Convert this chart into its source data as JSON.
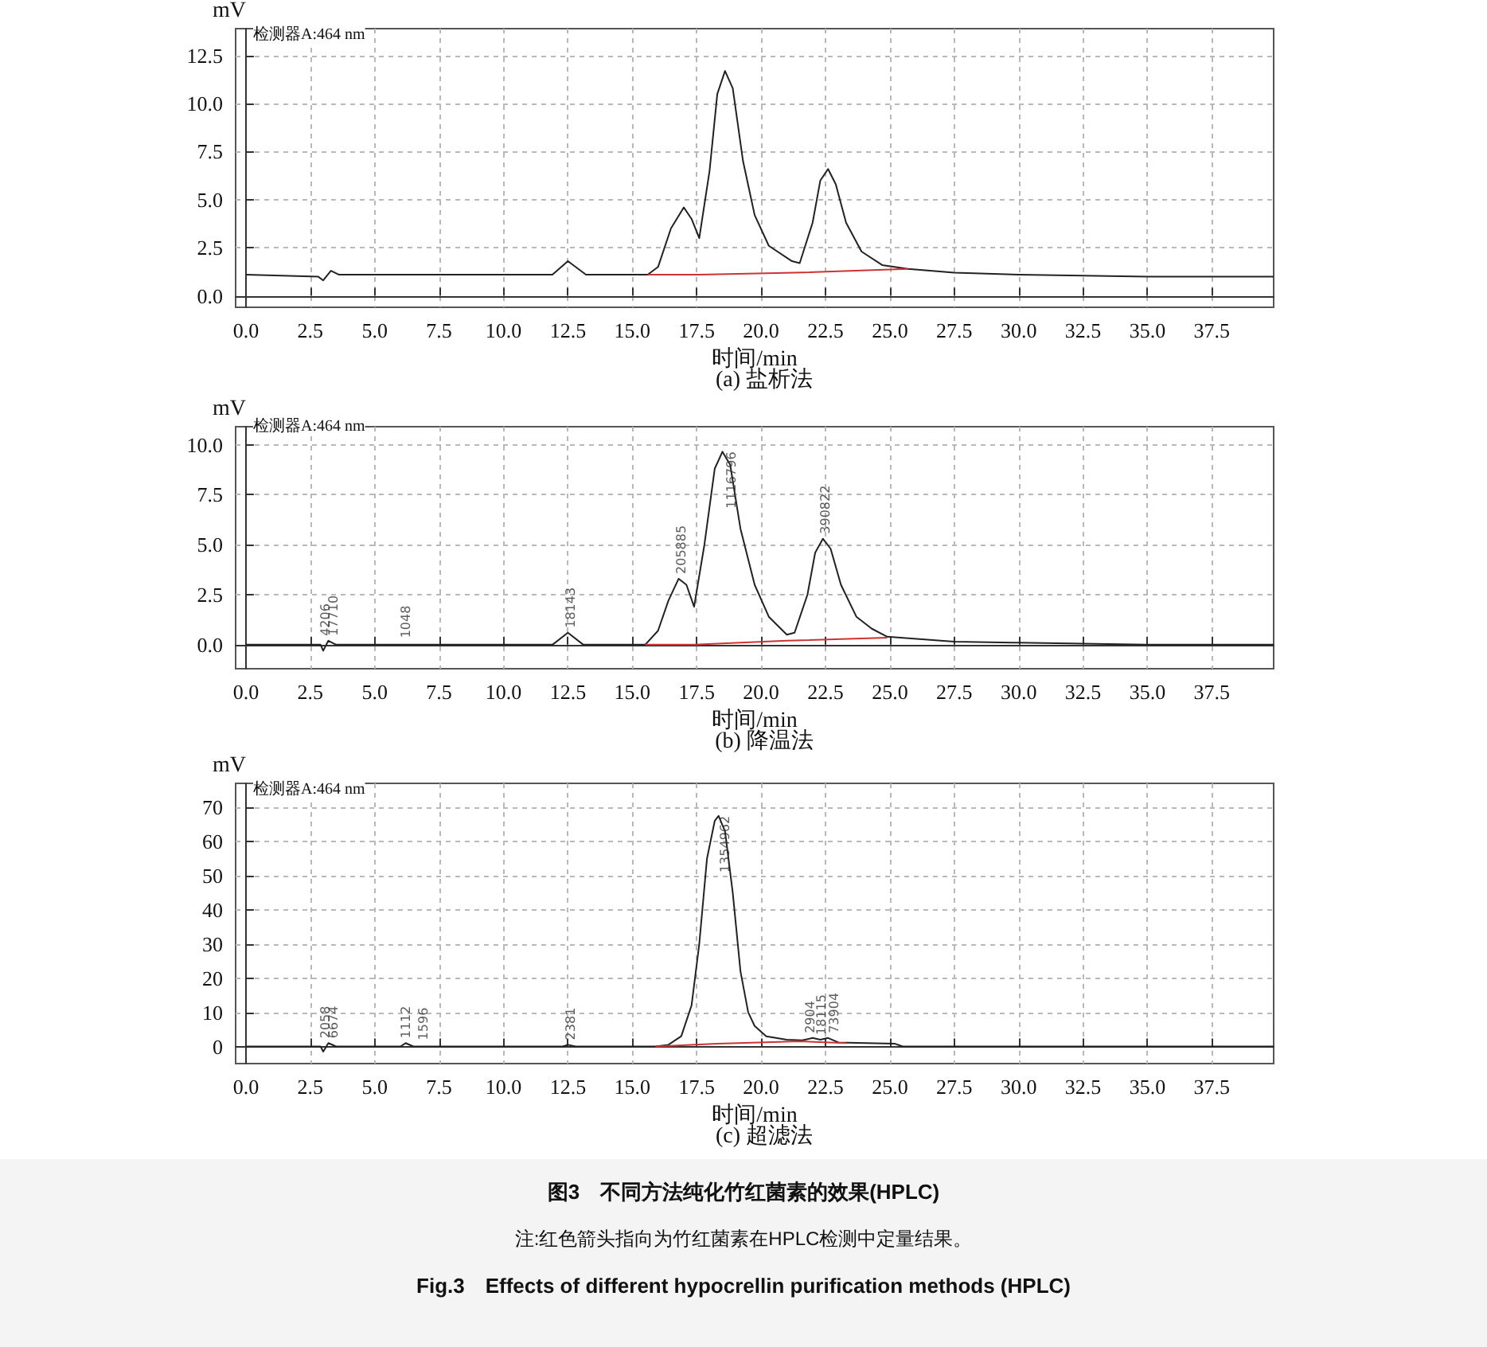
{
  "chart_data": [
    {
      "type": "line",
      "title": "(a) 盐析法",
      "xlabel": "时间/min",
      "ylabel": "mV",
      "annotations": [
        "检测器A:464 nm"
      ],
      "xlim": [
        -0.4,
        39.9
      ],
      "xticks": [
        {
          "value": 0,
          "label": "0.0"
        },
        2.5,
        {
          "value": 5,
          "label": "5.0"
        },
        7.5,
        {
          "value": 10,
          "label": "10.0"
        },
        12.5,
        {
          "value": 15,
          "label": "15.0"
        },
        17.5,
        {
          "value": 20,
          "label": "20.0"
        },
        22.5,
        {
          "value": 25,
          "label": "25.0"
        },
        27.5,
        {
          "value": 30,
          "label": "30.0"
        },
        32.5,
        {
          "value": 35,
          "label": "35.0"
        },
        37.5
      ],
      "ylim": [
        -0.6,
        13.9
      ],
      "yticks": [
        {
          "value": 0,
          "label": "0.0"
        },
        2.5,
        {
          "value": 5,
          "label": "5.0"
        },
        7.5,
        {
          "value": 10,
          "label": "10.0"
        },
        12.5
      ],
      "grid": true,
      "marker": "none",
      "line_style": "solid",
      "series": [
        {
          "color": "#222222",
          "x": [
            0,
            2.8,
            3.0,
            3.3,
            3.6,
            6,
            11.9,
            12.5,
            13.2,
            15.6,
            16.0,
            16.5,
            17.0,
            17.3,
            17.6,
            18.0,
            18.3,
            18.6,
            18.9,
            19.3,
            19.75,
            20.3,
            21.2,
            21.5,
            22.0,
            22.3,
            22.6,
            22.9,
            23.3,
            23.9,
            24.7,
            25.7,
            27.5,
            30,
            35,
            39.9
          ],
          "values": [
            1.1,
            1.0,
            0.8,
            1.3,
            1.1,
            1.1,
            1.1,
            1.8,
            1.1,
            1.1,
            1.5,
            3.5,
            4.6,
            4.0,
            3.0,
            6.5,
            10.5,
            11.7,
            10.8,
            7.0,
            4.2,
            2.6,
            1.8,
            1.7,
            3.8,
            6.0,
            6.6,
            5.8,
            3.8,
            2.3,
            1.6,
            1.4,
            1.2,
            1.1,
            1.0,
            1.0
          ]
        },
        {
          "color": "#cc3333",
          "x": [
            15.6,
            17.6,
            21.3,
            25.7
          ],
          "values": [
            1.1,
            1.1,
            1.2,
            1.4
          ]
        }
      ]
    },
    {
      "type": "line",
      "title": "(b) 降温法",
      "xlabel": "时间/min",
      "ylabel": "mV",
      "annotations": [
        "检测器A:464 nm",
        {
          "text": "4206",
          "x": 3.1,
          "y": 0.2
        },
        {
          "text": "17710",
          "x": 3.4,
          "y": 0.2
        },
        {
          "text": "1048",
          "x": 6.2,
          "y": 0.1
        },
        {
          "text": "18143",
          "x": 12.6,
          "y": 0.6
        },
        {
          "text": "205885",
          "x": 16.9,
          "y": 3.3
        },
        {
          "text": "1116796",
          "x": 18.6,
          "y": 9.65
        },
        {
          "text": "390822",
          "x": 22.5,
          "y": 5.3
        }
      ],
      "xlim": [
        -0.4,
        39.9
      ],
      "xticks": [
        {
          "value": 0,
          "label": "0.0"
        },
        2.5,
        {
          "value": 5,
          "label": "5.0"
        },
        7.5,
        {
          "value": 10,
          "label": "10.0"
        },
        12.5,
        {
          "value": 15,
          "label": "15.0"
        },
        17.5,
        {
          "value": 20,
          "label": "20.0"
        },
        22.5,
        {
          "value": 25,
          "label": "25.0"
        },
        27.5,
        {
          "value": 30,
          "label": "30.0"
        },
        32.5,
        {
          "value": 35,
          "label": "35.0"
        },
        37.5
      ],
      "ylim": [
        -1.2,
        10.9
      ],
      "yticks": [
        {
          "value": 0,
          "label": "0.0"
        },
        2.5,
        {
          "value": 5,
          "label": "5.0"
        },
        7.5,
        {
          "value": 10,
          "label": "10.0"
        }
      ],
      "grid": true,
      "marker": "none",
      "line_style": "solid",
      "series": [
        {
          "color": "#222222",
          "x": [
            0,
            2.9,
            3.0,
            3.2,
            3.5,
            11.9,
            12.5,
            13.1,
            15.5,
            16.0,
            16.4,
            16.8,
            17.1,
            17.4,
            17.8,
            18.2,
            18.5,
            18.8,
            19.2,
            19.75,
            20.3,
            21.0,
            21.3,
            21.8,
            22.1,
            22.4,
            22.7,
            23.1,
            23.7,
            24.3,
            24.9,
            27.5,
            30,
            35,
            39.9
          ],
          "values": [
            0,
            0,
            -0.3,
            0.2,
            0,
            0,
            0.6,
            0,
            0,
            0.7,
            2.2,
            3.3,
            3.0,
            1.9,
            5.0,
            8.8,
            9.65,
            9.0,
            5.8,
            3.0,
            1.4,
            0.5,
            0.6,
            2.5,
            4.6,
            5.3,
            4.8,
            3.0,
            1.4,
            0.8,
            0.4,
            0.15,
            0.1,
            0,
            0
          ]
        },
        {
          "color": "#cc3333",
          "x": [
            15.5,
            17.4,
            21.0,
            24.9
          ],
          "values": [
            0,
            0,
            0.2,
            0.35
          ]
        }
      ]
    },
    {
      "type": "line",
      "title": "(c) 超滤法",
      "xlabel": "时间/min",
      "ylabel": "mV",
      "annotations": [
        "检测器A:464 nm",
        {
          "text": "2058",
          "x": 3.1,
          "y": 1
        },
        {
          "text": "6674",
          "x": 3.4,
          "y": 1
        },
        {
          "text": "1112",
          "x": 6.2,
          "y": 1
        },
        {
          "text": "1596",
          "x": 6.9,
          "y": 0.5
        },
        {
          "text": "2381",
          "x": 12.6,
          "y": 0.5
        },
        {
          "text": "1354962",
          "x": 18.35,
          "y": 67.5
        },
        {
          "text": "2904",
          "x": 21.9,
          "y": 2.5
        },
        {
          "text": "18115",
          "x": 22.35,
          "y": 2
        },
        {
          "text": "73904",
          "x": 22.85,
          "y": 2.5
        },
        "图3　不同方法纯化竹红菌素的效果(HPLC)",
        "注:红色箭头指向为竹红菌素在HPLC检测中定量结果。",
        "Fig.3　Effects of different hypocrellin purification methods (HPLC)"
      ],
      "xlim": [
        -0.4,
        39.9
      ],
      "xticks": [
        {
          "value": 0,
          "label": "0.0"
        },
        2.5,
        {
          "value": 5,
          "label": "5.0"
        },
        7.5,
        {
          "value": 10,
          "label": "10.0"
        },
        12.5,
        {
          "value": 15,
          "label": "15.0"
        },
        17.5,
        {
          "value": 20,
          "label": "20.0"
        },
        22.5,
        {
          "value": 25,
          "label": "25.0"
        },
        27.5,
        {
          "value": 30,
          "label": "30.0"
        },
        32.5,
        {
          "value": 35,
          "label": "35.0"
        },
        37.5
      ],
      "ylim": [
        -5,
        77
      ],
      "yticks": [
        0,
        10,
        20,
        30,
        40,
        50,
        60,
        70
      ],
      "grid": true,
      "marker": "none",
      "line_style": "solid",
      "series": [
        {
          "color": "#222222",
          "x": [
            0,
            2.9,
            3.0,
            3.2,
            3.5,
            6.0,
            6.2,
            6.5,
            12.3,
            12.5,
            12.8,
            15.9,
            16.4,
            16.9,
            17.3,
            17.6,
            17.9,
            18.2,
            18.35,
            18.6,
            18.9,
            19.2,
            19.5,
            19.75,
            20.2,
            21.0,
            21.6,
            22.0,
            22.3,
            22.6,
            23.0,
            25.2,
            25.5,
            30,
            35,
            39.9
          ],
          "values": [
            0,
            0,
            -1.5,
            1,
            0,
            0,
            1,
            0,
            0,
            0.5,
            0,
            0,
            0.5,
            3,
            12,
            30,
            55,
            66,
            67.5,
            63,
            45,
            22,
            10,
            6,
            3,
            2,
            1.8,
            2.5,
            2.0,
            2.5,
            1.2,
            0.8,
            0,
            0,
            0,
            0
          ]
        },
        {
          "color": "#cc3333",
          "x": [
            15.9,
            18.3,
            21.5,
            23.3
          ],
          "values": [
            0,
            0.8,
            1.5,
            1.0
          ]
        }
      ]
    }
  ]
}
